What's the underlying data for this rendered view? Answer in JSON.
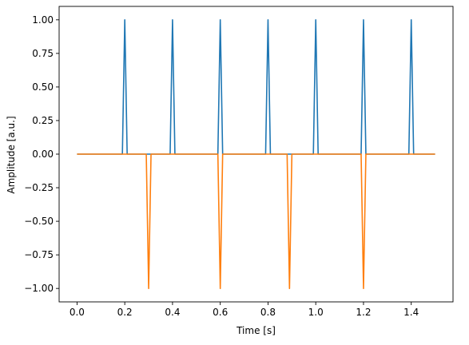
{
  "chart_data": {
    "type": "line",
    "title": "",
    "xlabel": "Time [s]",
    "ylabel": "Amplitude [a.u.]",
    "xlim": [
      -0.075,
      1.575
    ],
    "ylim": [
      -1.1,
      1.1
    ],
    "xticks": [
      0.0,
      0.2,
      0.4,
      0.6,
      0.8,
      1.0,
      1.2,
      1.4
    ],
    "xtick_labels": [
      "0.0",
      "0.2",
      "0.4",
      "0.6",
      "0.8",
      "1.0",
      "1.2",
      "1.4"
    ],
    "yticks": [
      -1.0,
      -0.75,
      -0.5,
      -0.25,
      0.0,
      0.25,
      0.5,
      0.75,
      1.0
    ],
    "ytick_labels": [
      "−1.00",
      "−0.75",
      "−0.50",
      "−0.25",
      "0.00",
      "0.25",
      "0.50",
      "0.75",
      "1.00"
    ],
    "grid": false,
    "legend": "none",
    "series": [
      {
        "color": "#1f77b4",
        "x": [
          0.0,
          0.19,
          0.2,
          0.21,
          0.39,
          0.4,
          0.41,
          0.59,
          0.6,
          0.61,
          0.79,
          0.8,
          0.81,
          0.99,
          1.0,
          1.01,
          1.19,
          1.2,
          1.21,
          1.39,
          1.4,
          1.41,
          1.5
        ],
        "y": [
          0,
          0,
          1,
          0,
          0,
          1,
          0,
          0,
          1,
          0,
          0,
          1,
          0,
          0,
          1,
          0,
          0,
          1,
          0,
          0,
          1,
          0,
          0
        ]
      },
      {
        "color": "#ff7f0e",
        "x": [
          0.0,
          0.29,
          0.3,
          0.31,
          0.59,
          0.6,
          0.61,
          0.88,
          0.89,
          0.9,
          1.19,
          1.2,
          1.21,
          1.5
        ],
        "y": [
          0,
          0,
          -1,
          0,
          0,
          -1,
          0,
          0,
          -1,
          0,
          0,
          -1,
          0,
          0
        ]
      }
    ]
  }
}
